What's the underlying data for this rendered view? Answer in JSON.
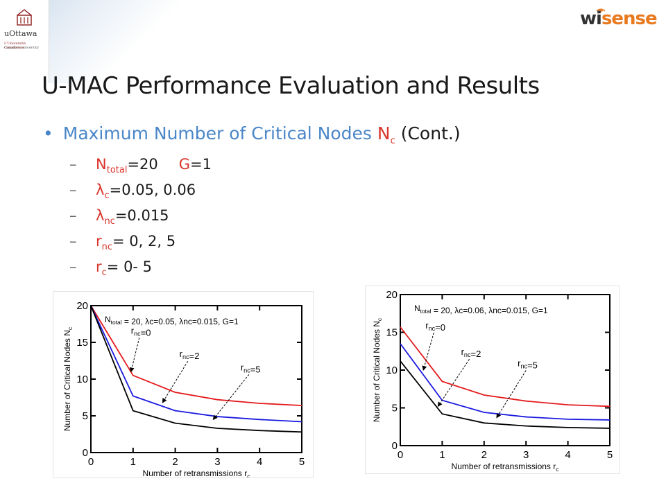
{
  "logos": {
    "uottawa": {
      "name": "uOttawa",
      "line_fr": "L'Université canadienne",
      "line_en": "Canada's university"
    },
    "wisense": {
      "name_dark": "wi",
      "name_accent": "sense"
    }
  },
  "title": "U-MAC Performance Evaluation and Results",
  "bullet": {
    "text": "Maximum Number of Critical Nodes",
    "symbol": "N",
    "symbol_sub": "c",
    "suffix": "(Cont.)"
  },
  "subitems": [
    {
      "dash": "–",
      "sym": "N",
      "sub": "total",
      "value": "=20",
      "extra_sym": "G",
      "extra_value": "=1"
    },
    {
      "dash": "–",
      "sym": "λ",
      "sub": "c",
      "value": "=0.05, 0.06"
    },
    {
      "dash": "–",
      "sym": "λ",
      "sub": "nc",
      "value": "=0.015"
    },
    {
      "dash": "–",
      "sym": "r",
      "sub": "nc",
      "value": "= 0, 2, 5"
    },
    {
      "dash": "–",
      "sym": "r",
      "sub": "c",
      "value": "= 0- 5"
    }
  ],
  "colors": {
    "accent_blue": "#4a86c8",
    "accent_red": "#d9342b",
    "wisense_orange": "#e8791e"
  },
  "chart_data": [
    {
      "type": "line",
      "legend_note": "N_total = 20, λc=0.05, λnc=0.015, G=1",
      "xlabel": "Number of retransmissions r_c",
      "ylabel": "Number of Critical Nodes N_c",
      "xlim": [
        0,
        5
      ],
      "ylim": [
        0,
        20
      ],
      "xticks": [
        0,
        1,
        2,
        3,
        4,
        5
      ],
      "yticks": [
        0,
        5,
        10,
        15,
        20
      ],
      "x": [
        0,
        1,
        2,
        3,
        4,
        5
      ],
      "series": [
        {
          "name": "r_nc=0",
          "color": "#e41a1c",
          "values": [
            20,
            10.5,
            8.2,
            7.2,
            6.7,
            6.4
          ]
        },
        {
          "name": "r_nc=2",
          "color": "#1a1ae0",
          "values": [
            20,
            7.7,
            5.7,
            4.9,
            4.5,
            4.2
          ]
        },
        {
          "name": "r_nc=5",
          "color": "#000000",
          "values": [
            20,
            5.7,
            4.0,
            3.3,
            3.0,
            2.8
          ]
        }
      ],
      "annotations": [
        {
          "label": "r_nc=0",
          "text_at": [
            0.95,
            16.2
          ],
          "arrow_to": [
            0.95,
            11.0
          ]
        },
        {
          "label": "r_nc=2",
          "text_at": [
            2.1,
            13.0
          ],
          "arrow_to": [
            1.7,
            6.8
          ]
        },
        {
          "label": "r_nc=5",
          "text_at": [
            3.55,
            11.2
          ],
          "arrow_to": [
            2.9,
            4.5
          ]
        }
      ]
    },
    {
      "type": "line",
      "legend_note": "N_total = 20, λc=0.06, λnc=0.015, G=1",
      "xlabel": "Number of retransmissions r_c",
      "ylabel": "Number of Critical Nodes N_c",
      "xlim": [
        0,
        5
      ],
      "ylim": [
        0,
        20
      ],
      "xticks": [
        0,
        1,
        2,
        3,
        4,
        5
      ],
      "yticks": [
        0,
        5,
        10,
        15,
        20
      ],
      "x": [
        0,
        1,
        2,
        3,
        4,
        5
      ],
      "series": [
        {
          "name": "r_nc=0",
          "color": "#e41a1c",
          "values": [
            15.7,
            8.5,
            6.7,
            5.9,
            5.4,
            5.2
          ]
        },
        {
          "name": "r_nc=2",
          "color": "#1a1ae0",
          "values": [
            13.5,
            6.0,
            4.4,
            3.8,
            3.5,
            3.4
          ]
        },
        {
          "name": "r_nc=5",
          "color": "#000000",
          "values": [
            11.2,
            4.2,
            3.0,
            2.6,
            2.4,
            2.3
          ]
        }
      ],
      "annotations": [
        {
          "label": "r_nc=0",
          "text_at": [
            0.6,
            15.5
          ],
          "arrow_to": [
            0.55,
            10.0
          ]
        },
        {
          "label": "r_nc=2",
          "text_at": [
            1.45,
            12.0
          ],
          "arrow_to": [
            0.9,
            5.2
          ]
        },
        {
          "label": "r_nc=5",
          "text_at": [
            2.8,
            10.5
          ],
          "arrow_to": [
            2.3,
            3.7
          ]
        }
      ]
    }
  ]
}
